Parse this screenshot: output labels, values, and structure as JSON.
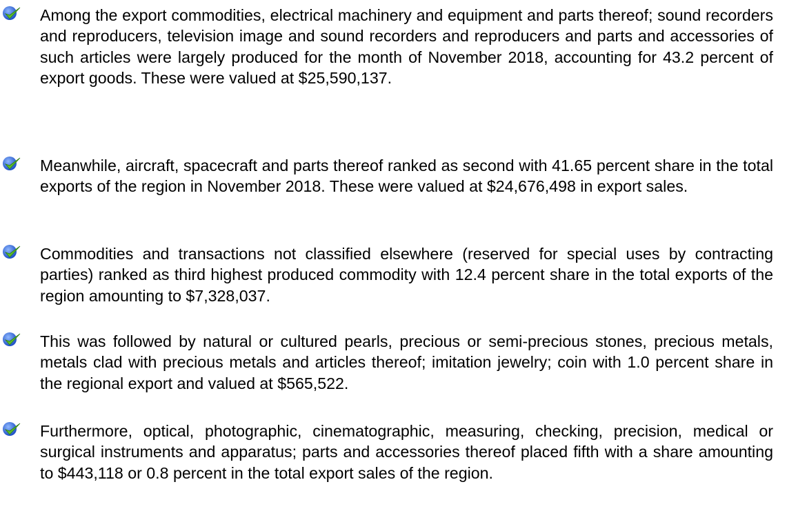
{
  "items": [
    "Among the export commodities, electrical machinery and equipment and parts thereof; sound recorders and reproducers, television image and sound recorders and reproducers and parts and accessories of such articles were largely produced for the month of November 2018, accounting for 43.2 percent of export goods. These were valued at $25,590,137.",
    "Meanwhile, aircraft, spacecraft and parts thereof ranked as second with 41.65 percent share in the total exports of the region in November 2018. These were valued at $24,676,498 in export sales.",
    "Commodities and transactions not classified elsewhere (reserved for special uses by contracting parties) ranked as third highest produced commodity with 12.4 percent share in the total exports of the region amounting to $7,328,037.",
    "This was followed by natural or cultured pearls, precious or semi-precious stones, precious metals, metals clad with precious metals and articles thereof; imitation jewelry; coin with 1.0 percent share in the regional export and valued at $565,522.",
    "Furthermore, optical, photographic, cinematographic, measuring, checking, precision, medical or surgical instruments and apparatus; parts and accessories thereof placed fifth with a share amounting to $443,118 or 0.8 percent in the total export sales of the region."
  ]
}
